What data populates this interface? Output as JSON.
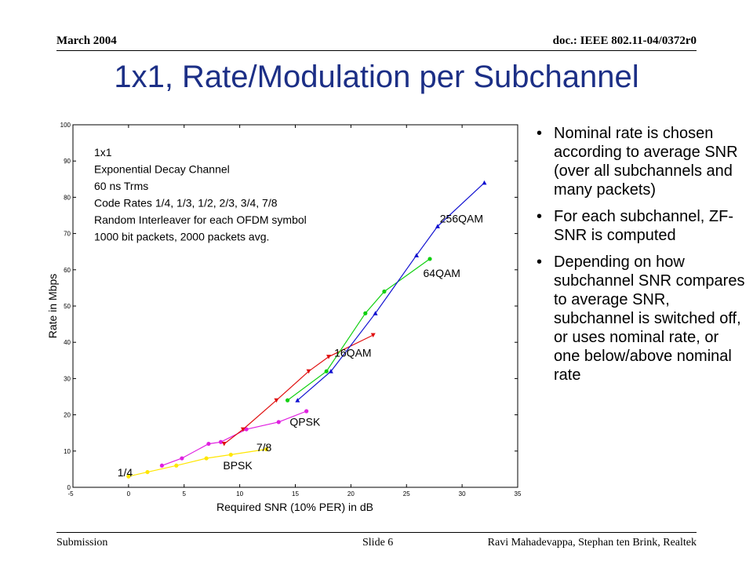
{
  "header": {
    "date": "March 2004",
    "doc_id": "doc.: IEEE 802.11-04/0372r0"
  },
  "title": "1x1, Rate/Modulation per Subchannel",
  "footer": {
    "left": "Submission",
    "center": "Slide 6",
    "right": "Ravi Mahadevappa, Stephan ten Brink, Realtek"
  },
  "bullets": [
    "Nominal rate is chosen according to average SNR (over all subchannels and many packets)",
    "For each subchannel, ZF-SNR is computed",
    "Depending on how subchannel SNR compares to average SNR, subchannel is switched off, or uses nominal rate, or one below/above nominal rate"
  ],
  "chart_data": {
    "type": "line",
    "xlabel": "Required SNR (10% PER) in dB",
    "ylabel": "Rate in Mbps",
    "xlim": [
      -5,
      35
    ],
    "ylim": [
      0,
      100
    ],
    "x_ticks": [
      "0",
      "5",
      "10",
      "15",
      "20",
      "25",
      "30",
      "35"
    ],
    "x_tick_values": [
      0,
      5,
      10,
      15,
      20,
      25,
      30,
      35
    ],
    "x_min_label": "-5",
    "y_ticks": [
      "0",
      "10",
      "20",
      "30",
      "40",
      "50",
      "60",
      "70",
      "80",
      "90",
      "100"
    ],
    "y_tick_values": [
      0,
      10,
      20,
      30,
      40,
      50,
      60,
      70,
      80,
      90,
      100
    ],
    "grid": false,
    "legend": "none",
    "annotation_lines": [
      "1x1",
      "Exponential Decay Channel",
      "60 ns Trms",
      "Code Rates 1/4, 1/3, 1/2, 2/3, 3/4, 7/8",
      "Random Interleaver for each OFDM symbol",
      "1000 bit packets, 2000 packets avg."
    ],
    "point_labels": [
      {
        "text": "256QAM",
        "x": 28,
        "y": 73
      },
      {
        "text": "64QAM",
        "x": 26.5,
        "y": 58
      },
      {
        "text": "16QAM",
        "x": 18.5,
        "y": 36
      },
      {
        "text": "QPSK",
        "x": 14.5,
        "y": 17
      },
      {
        "text": "7/8",
        "x": 11.5,
        "y": 10
      },
      {
        "text": "BPSK",
        "x": 8.5,
        "y": 5
      },
      {
        "text": "1/4",
        "x": -1,
        "y": 3
      }
    ],
    "series": [
      {
        "color": "#ffe600",
        "marker": "circle",
        "x": [
          0,
          1.7,
          4.3,
          7,
          9.2,
          12.4
        ],
        "y": [
          3,
          4.2,
          6,
          8,
          9,
          10.5
        ]
      },
      {
        "color": "#e020e0",
        "marker": "circle",
        "x": [
          3,
          4.8,
          7.2,
          8.3,
          10.6,
          13.5,
          16
        ],
        "y": [
          6,
          8,
          12,
          12.5,
          16,
          18,
          21
        ]
      },
      {
        "color": "#e01010",
        "marker": "triangle-down",
        "x": [
          8.6,
          10.3,
          13.3,
          16.2,
          18,
          22
        ],
        "y": [
          12,
          16,
          24,
          32,
          36,
          42
        ]
      },
      {
        "color": "#10d010",
        "marker": "circle",
        "x": [
          14.3,
          17.8,
          21.3,
          23,
          27.1
        ],
        "y": [
          24,
          32,
          48,
          54,
          63
        ]
      },
      {
        "color": "#1010d0",
        "marker": "triangle-up",
        "x": [
          15.2,
          18.2,
          22.2,
          25.9,
          27.8,
          32
        ],
        "y": [
          24,
          32,
          48,
          64,
          72,
          84
        ]
      }
    ]
  }
}
